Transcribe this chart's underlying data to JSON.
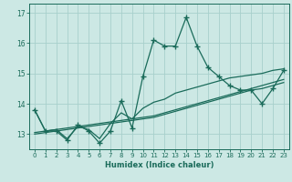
{
  "title": "",
  "xlabel": "Humidex (Indice chaleur)",
  "background_color": "#cce8e4",
  "grid_color": "#a8d0cc",
  "line_color": "#1a6b5a",
  "xlim": [
    -0.5,
    23.5
  ],
  "ylim": [
    12.5,
    17.3
  ],
  "yticks": [
    13,
    14,
    15,
    16,
    17
  ],
  "xticks": [
    0,
    1,
    2,
    3,
    4,
    5,
    6,
    7,
    8,
    9,
    10,
    11,
    12,
    13,
    14,
    15,
    16,
    17,
    18,
    19,
    20,
    21,
    22,
    23
  ],
  "series": [
    [
      13.8,
      13.1,
      13.1,
      12.8,
      13.3,
      13.1,
      12.7,
      13.1,
      14.1,
      13.2,
      14.9,
      16.1,
      15.9,
      15.9,
      16.85,
      15.9,
      15.2,
      14.9,
      14.6,
      14.45,
      14.45,
      14.0,
      14.5,
      15.1
    ],
    [
      13.8,
      13.1,
      13.15,
      12.85,
      13.25,
      13.15,
      12.85,
      13.35,
      13.7,
      13.5,
      13.85,
      14.05,
      14.15,
      14.35,
      14.45,
      14.55,
      14.65,
      14.75,
      14.85,
      14.9,
      14.95,
      15.0,
      15.1,
      15.15
    ],
    [
      13.05,
      13.1,
      13.15,
      13.2,
      13.25,
      13.3,
      13.35,
      13.4,
      13.45,
      13.5,
      13.55,
      13.6,
      13.7,
      13.8,
      13.9,
      14.0,
      14.1,
      14.2,
      14.3,
      14.4,
      14.5,
      14.6,
      14.7,
      14.8
    ],
    [
      13.0,
      13.05,
      13.1,
      13.15,
      13.2,
      13.25,
      13.3,
      13.35,
      13.4,
      13.45,
      13.5,
      13.55,
      13.65,
      13.75,
      13.85,
      13.95,
      14.05,
      14.15,
      14.25,
      14.35,
      14.45,
      14.5,
      14.6,
      14.7
    ]
  ],
  "marker": "+",
  "markersize": 4,
  "linewidth": 0.9,
  "xlabel_fontsize": 6,
  "tick_fontsize": 5,
  "ytick_fontsize": 5.5
}
